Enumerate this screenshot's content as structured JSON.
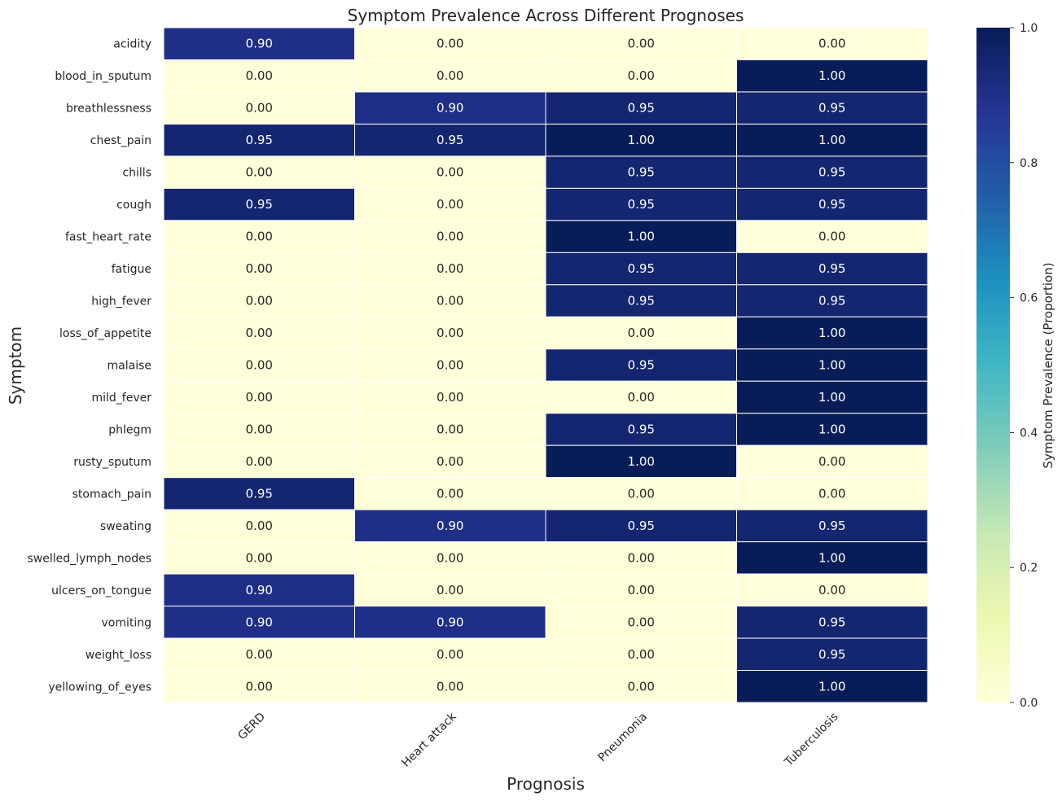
{
  "chart_data": {
    "type": "heatmap",
    "title": "Symptom Prevalence Across Different Prognoses",
    "xlabel": "Prognosis",
    "ylabel": "Symptom",
    "x_categories": [
      "GERD",
      "Heart attack",
      "Pneumonia",
      "Tuberculosis"
    ],
    "y_categories": [
      "acidity",
      "blood_in_sputum",
      "breathlessness",
      "chest_pain",
      "chills",
      "cough",
      "fast_heart_rate",
      "fatigue",
      "high_fever",
      "loss_of_appetite",
      "malaise",
      "mild_fever",
      "phlegm",
      "rusty_sputum",
      "stomach_pain",
      "sweating",
      "swelled_lymph_nodes",
      "ulcers_on_tongue",
      "vomiting",
      "weight_loss",
      "yellowing_of_eyes"
    ],
    "values": [
      [
        0.9,
        0.0,
        0.0,
        0.0
      ],
      [
        0.0,
        0.0,
        0.0,
        1.0
      ],
      [
        0.0,
        0.9,
        0.95,
        0.95
      ],
      [
        0.95,
        0.95,
        1.0,
        1.0
      ],
      [
        0.0,
        0.0,
        0.95,
        0.95
      ],
      [
        0.95,
        0.0,
        0.95,
        0.95
      ],
      [
        0.0,
        0.0,
        1.0,
        0.0
      ],
      [
        0.0,
        0.0,
        0.95,
        0.95
      ],
      [
        0.0,
        0.0,
        0.95,
        0.95
      ],
      [
        0.0,
        0.0,
        0.0,
        1.0
      ],
      [
        0.0,
        0.0,
        0.95,
        1.0
      ],
      [
        0.0,
        0.0,
        0.0,
        1.0
      ],
      [
        0.0,
        0.0,
        0.95,
        1.0
      ],
      [
        0.0,
        0.0,
        1.0,
        0.0
      ],
      [
        0.95,
        0.0,
        0.0,
        0.0
      ],
      [
        0.0,
        0.9,
        0.95,
        0.95
      ],
      [
        0.0,
        0.0,
        0.0,
        1.0
      ],
      [
        0.9,
        0.0,
        0.0,
        0.0
      ],
      [
        0.9,
        0.9,
        0.0,
        0.95
      ],
      [
        0.0,
        0.0,
        0.0,
        0.95
      ],
      [
        0.0,
        0.0,
        0.0,
        1.0
      ]
    ],
    "value_format": "0.00",
    "colormap": "YlGnBu",
    "vmin": 0,
    "vmax": 1,
    "colorbar": {
      "label": "Symptom Prevalence (Proportion)",
      "ticks": [
        0.0,
        0.2,
        0.4,
        0.6,
        0.8,
        1.0
      ],
      "tick_labels": [
        "0.0",
        "0.2",
        "0.4",
        "0.6",
        "0.8",
        "1.0"
      ]
    },
    "colormap_stops": [
      "#ffffd9",
      "#edf8b1",
      "#c7e9b4",
      "#7fcdbb",
      "#41b6c4",
      "#1d91c0",
      "#225ea8",
      "#253494",
      "#081d58"
    ],
    "x_tick_rotation_deg": 45
  }
}
